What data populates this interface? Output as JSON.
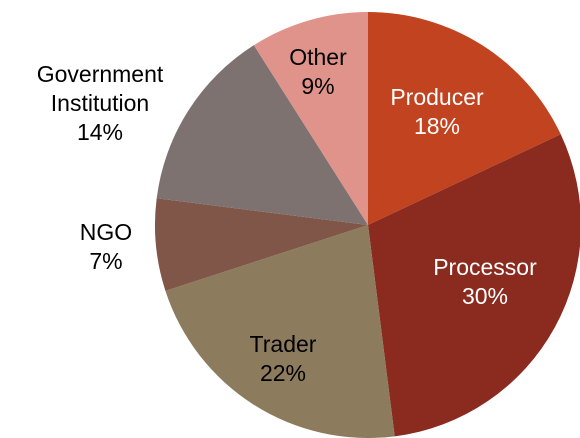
{
  "chart_data": {
    "type": "pie",
    "categories": [
      "Producer",
      "Processor",
      "Trader",
      "NGO",
      "Government Institution",
      "Other"
    ],
    "values": [
      18,
      30,
      22,
      7,
      14,
      9
    ],
    "value_labels": [
      "18%",
      "30%",
      "22%",
      "7%",
      "14%",
      "9%"
    ],
    "colors": [
      "#c2431f",
      "#8b2a1f",
      "#8d7b5d",
      "#7f5648",
      "#7e7271",
      "#e0938a"
    ]
  }
}
